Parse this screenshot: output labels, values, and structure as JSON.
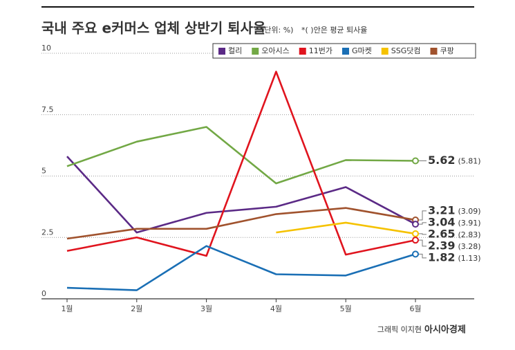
{
  "chart_data": {
    "type": "line",
    "title": "국내 주요 e커머스 업체 상반기 퇴사율",
    "subtitle": "(단위: %)",
    "note": "*( )안은 평균 퇴사율",
    "credit": "그래픽 이지현",
    "source": "아시아경제",
    "categories": [
      "1월",
      "2월",
      "3월",
      "4월",
      "5월",
      "6월"
    ],
    "ylim": [
      0,
      10
    ],
    "yticks": [
      0,
      2.5,
      5,
      7.5,
      10
    ],
    "grid": true,
    "legend": "top-right",
    "series": [
      {
        "name": "컬리",
        "color": "#5b2a86",
        "values": [
          5.8,
          2.7,
          3.5,
          3.75,
          4.55,
          3.04
        ],
        "average": {
          "value": 3.91,
          "label": "(3.91)"
        }
      },
      {
        "name": "오아시스",
        "color": "#72a845",
        "values": [
          5.4,
          6.4,
          7.0,
          4.7,
          5.65,
          5.62
        ],
        "average": {
          "value": 5.81,
          "label": "(5.81)"
        }
      },
      {
        "name": "11번가",
        "color": "#e0141e",
        "values": [
          1.95,
          2.5,
          1.75,
          9.25,
          1.8,
          2.39
        ],
        "average": {
          "value": 3.28,
          "label": "(3.28)"
        }
      },
      {
        "name": "G마켓",
        "color": "#1a6fb5",
        "values": [
          0.45,
          0.35,
          2.15,
          1.0,
          0.95,
          1.82
        ],
        "average": {
          "value": 1.13,
          "label": "(1.13)"
        }
      },
      {
        "name": "SSG닷컴",
        "color": "#f5c200",
        "values": [
          null,
          null,
          null,
          2.7,
          3.1,
          2.65
        ],
        "average": {
          "value": 2.83,
          "label": "(2.83)"
        }
      },
      {
        "name": "쿠팡",
        "color": "#a0522d",
        "values": [
          2.45,
          2.85,
          2.85,
          3.45,
          3.7,
          3.21
        ],
        "average": {
          "value": 3.09,
          "label": "(3.09)"
        }
      }
    ]
  }
}
